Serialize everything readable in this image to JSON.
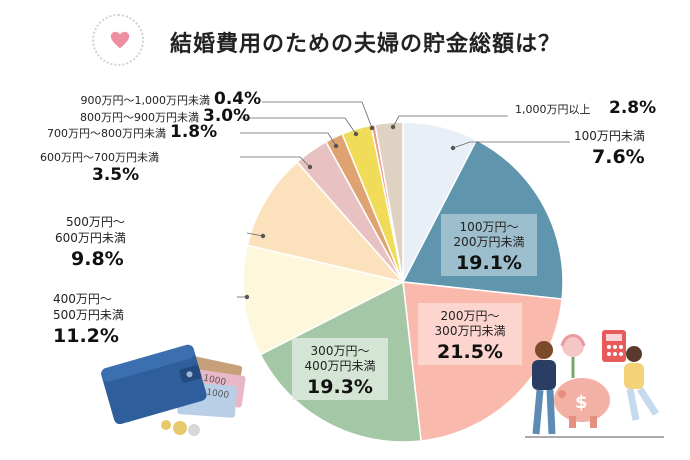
{
  "title": "結婚費用のための夫婦の貯金総額は？",
  "icons": {
    "title_icon": "heart-icon",
    "wallet_illustration": "wallet-money-illustration",
    "couple_illustration": "couple-piggy-bank-illustration"
  },
  "colors": {
    "s0": "#e9eff6",
    "s1": "#5f95ad",
    "s2": "#f9b9ad",
    "s3": "#a4c8a6",
    "s4": "#fdf8dc",
    "s5": "#fce2bc",
    "s6": "#e8c2c2",
    "s7": "#dea370",
    "s8": "#f0dc58",
    "s9": "#ec9a8a",
    "s10": "#dfd2c3"
  },
  "chart_data": {
    "type": "pie",
    "title": "結婚費用のための夫婦の貯金総額は？",
    "start": "top, clockwise",
    "slices": [
      {
        "label": "100万円未満",
        "value": 7.6,
        "display": "7.6%"
      },
      {
        "label": "100万円〜200万円未満",
        "value": 19.1,
        "display": "19.1%"
      },
      {
        "label": "200万円〜300万円未満",
        "value": 21.5,
        "display": "21.5%"
      },
      {
        "label": "300万円〜400万円未満",
        "value": 19.3,
        "display": "19.3%"
      },
      {
        "label": "400万円〜500万円未満",
        "value": 11.2,
        "display": "11.2%"
      },
      {
        "label": "500万円〜600万円未満",
        "value": 9.8,
        "display": "9.8%"
      },
      {
        "label": "600万円〜700万円未満",
        "value": 3.5,
        "display": "3.5%"
      },
      {
        "label": "700万円〜800万円未満",
        "value": 1.8,
        "display": "1.8%"
      },
      {
        "label": "800万円〜900万円未満",
        "value": 3.0,
        "display": "3.0%"
      },
      {
        "label": "900万円〜1,000万円未満",
        "value": 0.4,
        "display": "0.4%"
      },
      {
        "label": "1,000万円以上",
        "value": 2.8,
        "display": "2.8%"
      }
    ],
    "label_lines": {
      "l0": [
        "100万円未満"
      ],
      "l1": [
        "100万円〜",
        "200万円未満"
      ],
      "l2": [
        "200万円〜",
        "300万円未満"
      ],
      "l3": [
        "300万円〜",
        "400万円未満"
      ],
      "l4": [
        "400万円〜",
        "500万円未満"
      ],
      "l5": [
        "500万円〜",
        "600万円未満"
      ],
      "l6": [
        "600万円〜700万円未満"
      ],
      "l7": [
        "700万円〜800万円未満"
      ],
      "l8": [
        "800万円〜900万円未満"
      ],
      "l9": [
        "900万円〜1,000万円未満"
      ],
      "l10": [
        "1,000万円以上"
      ]
    }
  }
}
